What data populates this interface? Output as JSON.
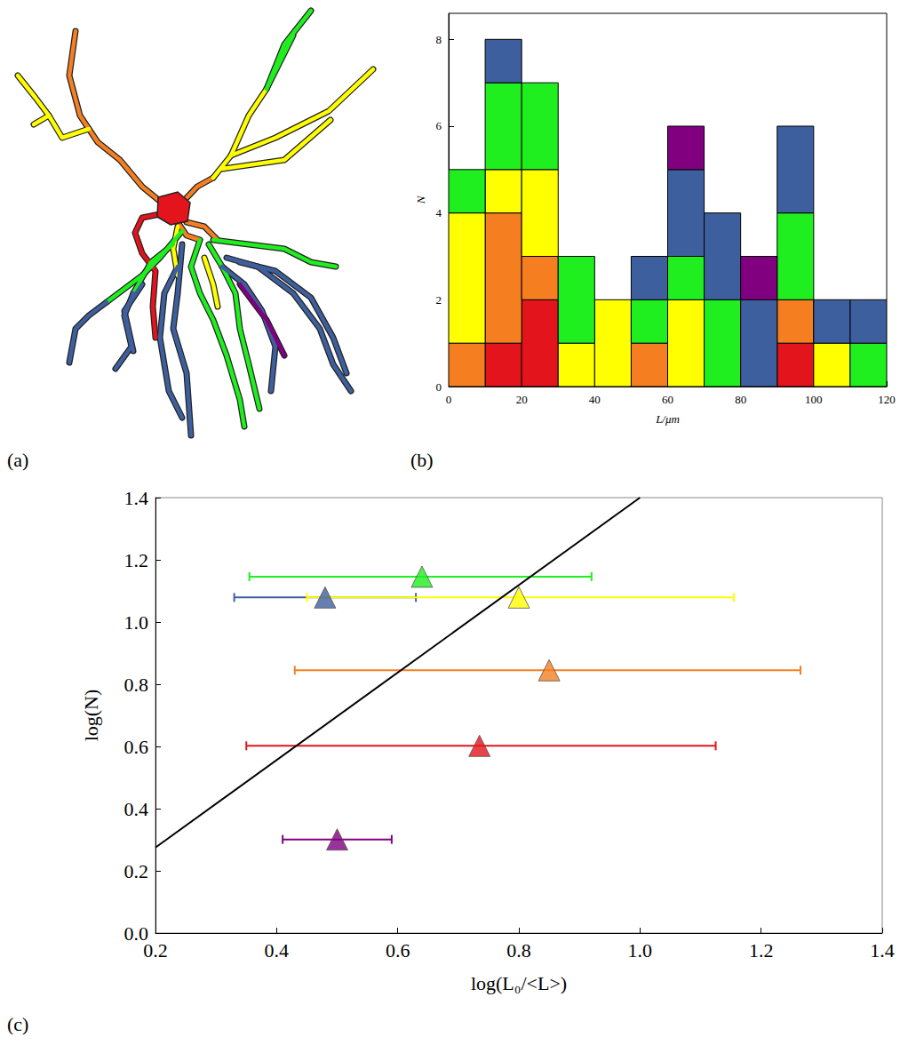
{
  "diagram": {
    "title": "(a)"
  },
  "chart_data": [
    {
      "type": "histogram",
      "title": "(b)",
      "x_label": "L/μm",
      "y_label": "N",
      "bins": [
        0,
        10,
        20,
        30,
        40,
        50,
        60,
        70,
        80,
        90,
        100,
        110,
        120
      ],
      "stacked": true,
      "series": [
        {
          "color": "#e3141c",
          "values": [
            0,
            1,
            2,
            0,
            0,
            0,
            0,
            0,
            0,
            1,
            0,
            0
          ]
        },
        {
          "color": "#f57f20",
          "values": [
            1,
            3,
            1,
            0,
            0,
            1,
            0,
            0,
            0,
            1,
            0,
            0
          ]
        },
        {
          "color": "#ffff00",
          "values": [
            3,
            1,
            2,
            1,
            2,
            0,
            2,
            0,
            0,
            0,
            1,
            0
          ]
        },
        {
          "color": "#1fee1f",
          "values": [
            1,
            2,
            2,
            2,
            0,
            1,
            1,
            2,
            0,
            2,
            0,
            1
          ]
        },
        {
          "color": "#3e5f9e",
          "values": [
            0,
            1,
            0,
            0,
            0,
            1,
            2,
            2,
            2,
            2,
            1,
            1
          ]
        },
        {
          "color": "#80007f",
          "values": [
            0,
            0,
            0,
            0,
            0,
            0,
            1,
            0,
            1,
            0,
            0,
            0
          ]
        }
      ],
      "xlim": [
        0,
        120
      ],
      "xticks": [
        0,
        20,
        40,
        60,
        80,
        100,
        120
      ],
      "ylim": [
        0,
        8.6
      ],
      "yticks": [
        0,
        2,
        4,
        6,
        8
      ],
      "grid": false
    },
    {
      "type": "scatter",
      "title": "(c)",
      "x_label": "log(L₀/<L>)",
      "y_label": "log(N)",
      "series": [
        {
          "type": "scatter",
          "marker": "triangle",
          "x": [
            0.64,
            0.48,
            0.8,
            0.85,
            0.735,
            0.5
          ],
          "y": [
            1.146,
            1.079,
            1.079,
            0.845,
            0.602,
            0.301
          ],
          "x_low": [
            0.355,
            0.33,
            0.45,
            0.43,
            0.35,
            0.41
          ],
          "x_high": [
            0.92,
            0.63,
            1.155,
            1.265,
            1.125,
            0.59
          ],
          "colors": [
            "#1fee1f",
            "#3e5f9e",
            "#ffff00",
            "#f57f20",
            "#e3141c",
            "#80007f"
          ]
        },
        {
          "type": "line",
          "color": "#000000",
          "x": [
            0.2,
            1.0
          ],
          "y": [
            0.275,
            1.4
          ]
        }
      ],
      "xlim": [
        0.2,
        1.4
      ],
      "xticks": [
        0.2,
        0.4,
        0.6,
        0.8,
        {
          "value": 1,
          "label": "1.0"
        },
        1.2,
        1.4
      ],
      "ylim": [
        0,
        1.4
      ],
      "yticks": [
        {
          "value": 0,
          "label": "0.0"
        },
        0.2,
        0.4,
        0.6,
        0.8,
        {
          "value": 1,
          "label": "1.0"
        },
        1.2,
        1.4
      ],
      "grid": false
    }
  ]
}
